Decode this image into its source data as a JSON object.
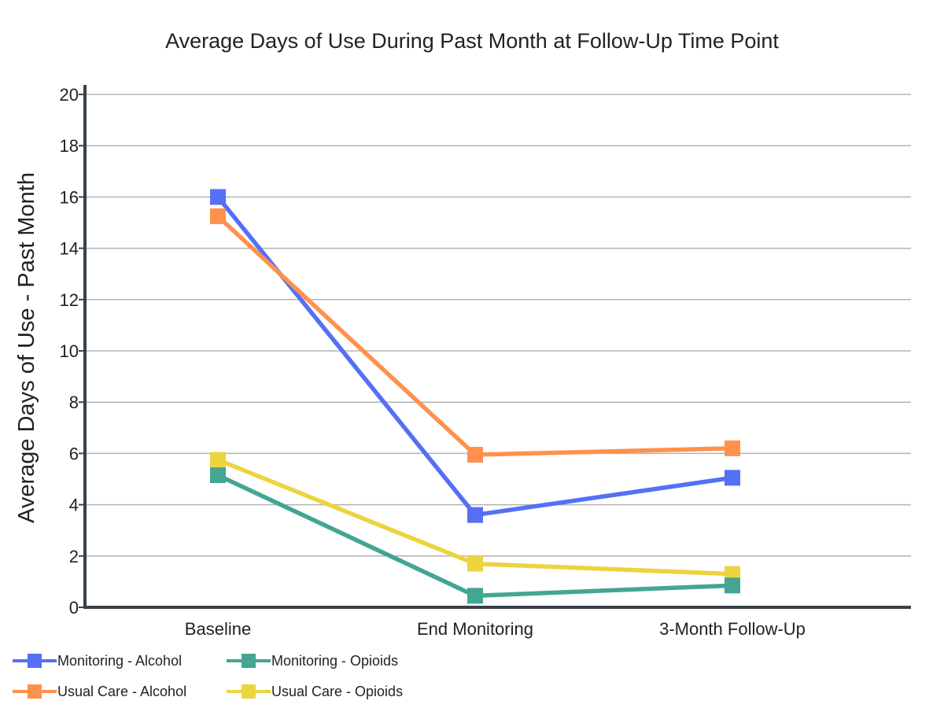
{
  "chart_data": {
    "type": "line",
    "title": "Average Days of Use During Past Month at Follow-Up Time Point",
    "xlabel": "",
    "ylabel": "Average Days of Use - Past Month",
    "categories": [
      "Baseline",
      "End Monitoring",
      "3-Month Follow-Up"
    ],
    "ylim": [
      0,
      20
    ],
    "yticks": [
      0,
      2,
      4,
      6,
      8,
      10,
      12,
      14,
      16,
      18,
      20
    ],
    "grid": true,
    "legend_position": "bottom",
    "series": [
      {
        "name": "Monitoring - Alcohol",
        "color": "#5470f5",
        "values": [
          16.0,
          3.6,
          5.05
        ]
      },
      {
        "name": "Monitoring - Opioids",
        "color": "#43a592",
        "values": [
          5.15,
          0.45,
          0.85
        ]
      },
      {
        "name": "Usual Care - Alcohol",
        "color": "#ff914d",
        "values": [
          15.25,
          5.95,
          6.2
        ]
      },
      {
        "name": "Usual Care - Opioids",
        "color": "#ecd43e",
        "values": [
          5.75,
          1.7,
          1.3
        ]
      }
    ]
  }
}
